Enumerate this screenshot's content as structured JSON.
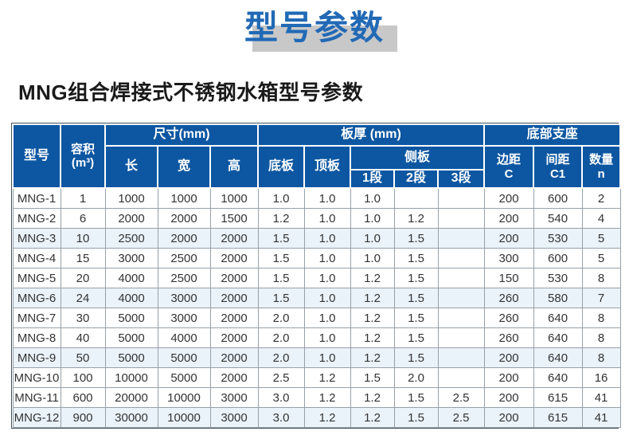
{
  "page": {
    "title": "型号参数",
    "subtitle": "MNG组合焊接式不锈钢水箱型号参数"
  },
  "colors": {
    "title_blue": "#2169b5",
    "title_shadow_gray": "#c8c8c8",
    "header_bg": "#0d57a2",
    "header_text": "#ffffff",
    "row_stripe": "#eaf3fa",
    "cell_border": "#97a0a8",
    "body_text": "#333333"
  },
  "table": {
    "header": {
      "model": "型号",
      "capacity": [
        "容积",
        "(m³)"
      ],
      "size_group": "尺寸(mm)",
      "length": "长",
      "width": "宽",
      "height": "高",
      "thickness_group": "板厚 (mm)",
      "bottom_plate": "底板",
      "top_plate": "顶板",
      "side_plate_group": "侧板",
      "side_seg_1": "1段",
      "side_seg_2": "2段",
      "side_seg_3": "3段",
      "support_group": "底部支座",
      "edge_distance": [
        "边距",
        "C"
      ],
      "spacing": [
        "间距",
        "C1"
      ],
      "quantity": [
        "数量",
        "n"
      ]
    },
    "striped_row_numbers": [
      3,
      6,
      9,
      12
    ],
    "rows": [
      [
        "MNG-1",
        "1",
        "1000",
        "1000",
        "1000",
        "1.0",
        "1.0",
        "1.0",
        "",
        "",
        "200",
        "600",
        "2"
      ],
      [
        "MNG-2",
        "6",
        "2000",
        "2000",
        "1500",
        "1.2",
        "1.0",
        "1.0",
        "1.2",
        "",
        "200",
        "540",
        "4"
      ],
      [
        "MNG-3",
        "10",
        "2500",
        "2000",
        "2000",
        "1.5",
        "1.0",
        "1.0",
        "1.5",
        "",
        "200",
        "530",
        "5"
      ],
      [
        "MNG-4",
        "15",
        "3000",
        "2500",
        "2000",
        "1.5",
        "1.0",
        "1.0",
        "1.5",
        "",
        "300",
        "600",
        "5"
      ],
      [
        "MNG-5",
        "20",
        "4000",
        "2500",
        "2000",
        "1.5",
        "1.0",
        "1.2",
        "1.5",
        "",
        "150",
        "530",
        "8"
      ],
      [
        "MNG-6",
        "24",
        "4000",
        "3000",
        "2000",
        "1.5",
        "1.0",
        "1.2",
        "1.5",
        "",
        "260",
        "580",
        "7"
      ],
      [
        "MNG-7",
        "30",
        "5000",
        "3000",
        "2000",
        "2.0",
        "1.0",
        "1.2",
        "1.5",
        "",
        "260",
        "640",
        "8"
      ],
      [
        "MNG-8",
        "40",
        "5000",
        "4000",
        "2000",
        "2.0",
        "1.0",
        "1.2",
        "1.5",
        "",
        "260",
        "640",
        "8"
      ],
      [
        "MNG-9",
        "50",
        "5000",
        "5000",
        "2000",
        "2.0",
        "1.0",
        "1.2",
        "1.5",
        "",
        "200",
        "640",
        "8"
      ],
      [
        "MNG-10",
        "100",
        "10000",
        "5000",
        "2000",
        "2.5",
        "1.2",
        "1.5",
        "2.0",
        "",
        "200",
        "640",
        "16"
      ],
      [
        "MNG-11",
        "600",
        "20000",
        "10000",
        "3000",
        "3.0",
        "1.2",
        "1.2",
        "1.5",
        "2.5",
        "200",
        "615",
        "41"
      ],
      [
        "MNG-12",
        "900",
        "30000",
        "10000",
        "3000",
        "3.0",
        "1.2",
        "1.2",
        "1.5",
        "2.5",
        "200",
        "615",
        "41"
      ]
    ]
  }
}
